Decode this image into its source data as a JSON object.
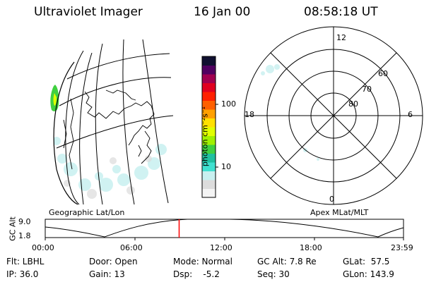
{
  "header": {
    "instrument": "Ultraviolet Imager",
    "date": "16 Jan 00",
    "time": "08:58:18 UT"
  },
  "colorbar": {
    "unit_label": "photon cm⁻²s⁻¹",
    "tick_100": "100",
    "tick_10": "10",
    "colors": [
      "#f4f4f4",
      "#dcdcdc",
      "#c8f0f0",
      "#40e0d0",
      "#20c0a0",
      "#40d040",
      "#a0f000",
      "#e0ff00",
      "#ffe000",
      "#ffa000",
      "#ff6000",
      "#ff2000",
      "#e00020",
      "#a00050",
      "#500060",
      "#101030"
    ]
  },
  "geo_panel": {
    "label": "Geographic Lat/Lon"
  },
  "polar_panel": {
    "label": "Apex MLat/MLT",
    "mlt_top": "12",
    "mlt_left": "18",
    "mlt_right": "6",
    "mlt_bottom": "0",
    "lat_60": "60",
    "lat_70": "70",
    "lat_80": "80"
  },
  "orbit_plot": {
    "ylabel": "GC Alt",
    "y_max": "9.0",
    "y_min": "1.8",
    "x_ticks": [
      "00:00",
      "06:00",
      "12:00",
      "18:00",
      "23:59"
    ],
    "marker_time_hours": 8.97,
    "marker_color": "#ff0000"
  },
  "status": {
    "filter": "Flt: LBHL",
    "door": "Door: Open",
    "mode": "Mode: Normal",
    "gc_alt": "GC Alt: 7.8 Re",
    "glat": "GLat:  57.5",
    "ip": "IP: 36.0",
    "gain": "Gain: 13",
    "dsp": "Dsp:    -5.2",
    "seq": "Seq: 30",
    "glon": "GLon: 143.9"
  }
}
